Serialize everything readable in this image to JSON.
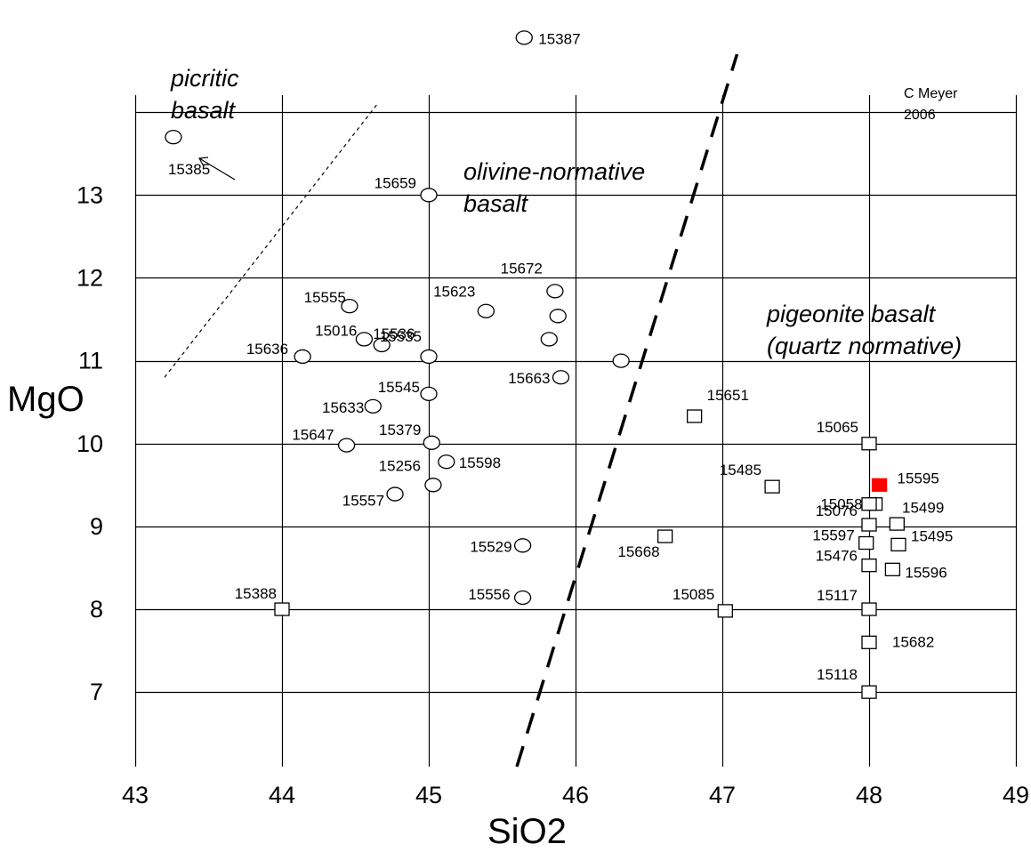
{
  "chart_data": {
    "type": "scatter",
    "xlabel": "SiO2",
    "ylabel": "MgO",
    "x_ticks": [
      "43",
      "44",
      "45",
      "46",
      "47",
      "48",
      "49"
    ],
    "y_ticks": [
      "7",
      "8",
      "9",
      "10",
      "11",
      "12",
      "13"
    ],
    "xlim": [
      43,
      49
    ],
    "ylim": [
      6.1,
      14.7
    ],
    "grid": true,
    "credit": [
      "C Meyer",
      "2006"
    ],
    "region_labels": [
      {
        "lines": [
          "picritic",
          "basalt"
        ]
      },
      {
        "lines": [
          "olivine-normative",
          "basalt"
        ]
      },
      {
        "lines": [
          "pigeonite basalt",
          "(quartz normative)"
        ]
      }
    ],
    "boundary_lines": [
      {
        "style": "dashed-thick",
        "points": [
          [
            45.6,
            6.1
          ],
          [
            47.1,
            14.7
          ]
        ]
      },
      {
        "style": "dotted",
        "points": [
          [
            43.2,
            10.8
          ],
          [
            44.65,
            14.1
          ]
        ]
      }
    ],
    "highlight_color": "#ff0000",
    "series": [
      {
        "marker": "ellipse",
        "points": [
          {
            "label": "15387",
            "x": 45.65,
            "y": 14.9
          },
          {
            "label": "15385",
            "x": 43.26,
            "y": 13.7
          },
          {
            "label": "15659",
            "x": 45.0,
            "y": 13.0
          },
          {
            "label": "15672",
            "x": 45.86,
            "y": 11.84
          },
          {
            "label": "15555",
            "x": 44.46,
            "y": 11.66
          },
          {
            "label": "15623",
            "x": 45.39,
            "y": 11.6
          },
          {
            "label": "",
            "x": 45.88,
            "y": 11.54
          },
          {
            "label": "15016",
            "x": 44.56,
            "y": 11.26
          },
          {
            "label": "15536",
            "x": 44.68,
            "y": 11.19
          },
          {
            "label": "",
            "x": 45.82,
            "y": 11.26
          },
          {
            "label": "15636",
            "x": 44.14,
            "y": 11.05
          },
          {
            "label": "15535",
            "x": 45.0,
            "y": 11.05
          },
          {
            "label": "",
            "x": 46.31,
            "y": 11.0
          },
          {
            "label": "15545",
            "x": 45.0,
            "y": 10.6
          },
          {
            "label": "15663",
            "x": 45.9,
            "y": 10.8
          },
          {
            "label": "15633",
            "x": 44.62,
            "y": 10.45
          },
          {
            "label": "15647",
            "x": 44.44,
            "y": 9.98
          },
          {
            "label": "15379",
            "x": 45.02,
            "y": 10.01
          },
          {
            "label": "15598",
            "x": 45.12,
            "y": 9.78
          },
          {
            "label": "15256",
            "x": 45.03,
            "y": 9.5
          },
          {
            "label": "15557",
            "x": 44.77,
            "y": 9.39
          },
          {
            "label": "15529",
            "x": 45.64,
            "y": 8.77
          },
          {
            "label": "15556",
            "x": 45.64,
            "y": 8.14
          }
        ]
      },
      {
        "marker": "square",
        "points": [
          {
            "label": "15651",
            "x": 46.81,
            "y": 10.33
          },
          {
            "label": "15065",
            "x": 48.0,
            "y": 10.0
          },
          {
            "label": "15485",
            "x": 47.34,
            "y": 9.48
          },
          {
            "label": "15595",
            "x": 48.07,
            "y": 9.5,
            "highlight": true
          },
          {
            "label": "15058",
            "x": 48.04,
            "y": 9.27
          },
          {
            "label": "15499",
            "x": 48.0,
            "y": 9.27
          },
          {
            "label": "15076",
            "x": 48.0,
            "y": 9.02
          },
          {
            "label": "",
            "x": 48.19,
            "y": 9.03
          },
          {
            "label": "15597",
            "x": 47.98,
            "y": 8.8
          },
          {
            "label": "15495",
            "x": 48.2,
            "y": 8.78
          },
          {
            "label": "15668",
            "x": 46.61,
            "y": 8.88
          },
          {
            "label": "15476",
            "x": 48.0,
            "y": 8.53
          },
          {
            "label": "15596",
            "x": 48.16,
            "y": 8.48
          },
          {
            "label": "15388",
            "x": 44.0,
            "y": 8.0
          },
          {
            "label": "15085",
            "x": 47.02,
            "y": 7.98
          },
          {
            "label": "15117",
            "x": 48.0,
            "y": 8.0
          },
          {
            "label": "15682",
            "x": 48.0,
            "y": 7.6
          },
          {
            "label": "15118",
            "x": 48.0,
            "y": 7.0
          }
        ]
      }
    ]
  }
}
